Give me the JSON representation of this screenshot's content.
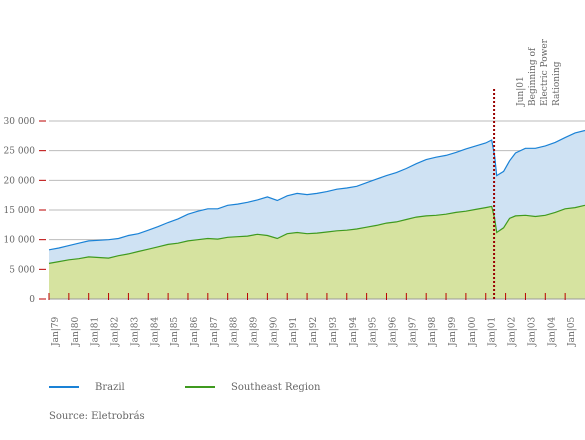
{
  "chart_data": {
    "type": "area",
    "title": "",
    "xlabel": "",
    "ylabel": "",
    "ylim": [
      0,
      30000
    ],
    "yticks": [
      0,
      5000,
      10000,
      15000,
      20000,
      25000,
      30000
    ],
    "ytick_labels": [
      "0",
      "5 000",
      "10 000",
      "15 000",
      "20 000",
      "25 000",
      "30 000"
    ],
    "x_tick_labels": [
      "Jan|79",
      "Jan|80",
      "Jan|81",
      "Jan|82",
      "Jan|83",
      "Jan|84",
      "Jan|85",
      "Jan|86",
      "Jan|87",
      "Jan|88",
      "Jan|89",
      "Jan|90",
      "Jan|91",
      "Jan|92",
      "Jan|93",
      "Jan|94",
      "Jan|95",
      "Jan|96",
      "Jan|97",
      "Jan|98",
      "Jan|99",
      "Jan|00",
      "Jan|01",
      "Jan|02",
      "Jan|03",
      "Jan|04",
      "Jan|05"
    ],
    "grid": true,
    "legend_position": "bottom",
    "series": [
      {
        "name": "Brazil",
        "color": "#1a82d6",
        "fill": "#cfe2f3",
        "points": [
          [
            1979.0,
            8300
          ],
          [
            1979.5,
            8600
          ],
          [
            1980.0,
            9000
          ],
          [
            1980.5,
            9400
          ],
          [
            1981.0,
            9800
          ],
          [
            1981.5,
            9900
          ],
          [
            1982.0,
            10000
          ],
          [
            1982.5,
            10200
          ],
          [
            1983.0,
            10700
          ],
          [
            1983.5,
            11000
          ],
          [
            1984.0,
            11600
          ],
          [
            1984.5,
            12200
          ],
          [
            1985.0,
            12900
          ],
          [
            1985.5,
            13500
          ],
          [
            1986.0,
            14300
          ],
          [
            1986.5,
            14800
          ],
          [
            1987.0,
            15200
          ],
          [
            1987.5,
            15200
          ],
          [
            1988.0,
            15800
          ],
          [
            1988.5,
            16000
          ],
          [
            1989.0,
            16300
          ],
          [
            1989.5,
            16700
          ],
          [
            1990.0,
            17200
          ],
          [
            1990.5,
            16600
          ],
          [
            1991.0,
            17400
          ],
          [
            1991.5,
            17800
          ],
          [
            1992.0,
            17600
          ],
          [
            1992.5,
            17800
          ],
          [
            1993.0,
            18100
          ],
          [
            1993.5,
            18500
          ],
          [
            1994.0,
            18700
          ],
          [
            1994.5,
            19000
          ],
          [
            1995.0,
            19600
          ],
          [
            1995.5,
            20200
          ],
          [
            1996.0,
            20800
          ],
          [
            1996.5,
            21300
          ],
          [
            1997.0,
            22000
          ],
          [
            1997.5,
            22800
          ],
          [
            1998.0,
            23500
          ],
          [
            1998.5,
            23900
          ],
          [
            1999.0,
            24200
          ],
          [
            1999.5,
            24700
          ],
          [
            2000.0,
            25300
          ],
          [
            2000.5,
            25800
          ],
          [
            2001.0,
            26300
          ],
          [
            2001.3,
            26800
          ],
          [
            2001.45,
            24000
          ],
          [
            2001.55,
            20800
          ],
          [
            2001.9,
            21500
          ],
          [
            2002.2,
            23300
          ],
          [
            2002.5,
            24600
          ],
          [
            2003.0,
            25400
          ],
          [
            2003.5,
            25400
          ],
          [
            2004.0,
            25800
          ],
          [
            2004.5,
            26400
          ],
          [
            2005.0,
            27200
          ],
          [
            2005.5,
            28000
          ],
          [
            2006.0,
            28400
          ]
        ]
      },
      {
        "name": "Southeast Region",
        "color": "#3f9a1f",
        "fill": "#d6e3a0",
        "points": [
          [
            1979.0,
            6000
          ],
          [
            1979.5,
            6300
          ],
          [
            1980.0,
            6600
          ],
          [
            1980.5,
            6800
          ],
          [
            1981.0,
            7100
          ],
          [
            1981.5,
            7000
          ],
          [
            1982.0,
            6900
          ],
          [
            1982.5,
            7300
          ],
          [
            1983.0,
            7600
          ],
          [
            1983.5,
            8000
          ],
          [
            1984.0,
            8400
          ],
          [
            1984.5,
            8800
          ],
          [
            1985.0,
            9200
          ],
          [
            1985.5,
            9400
          ],
          [
            1986.0,
            9800
          ],
          [
            1986.5,
            10000
          ],
          [
            1987.0,
            10200
          ],
          [
            1987.5,
            10100
          ],
          [
            1988.0,
            10400
          ],
          [
            1988.5,
            10500
          ],
          [
            1989.0,
            10600
          ],
          [
            1989.5,
            10900
          ],
          [
            1990.0,
            10700
          ],
          [
            1990.5,
            10200
          ],
          [
            1991.0,
            11000
          ],
          [
            1991.5,
            11200
          ],
          [
            1992.0,
            11000
          ],
          [
            1992.5,
            11100
          ],
          [
            1993.0,
            11300
          ],
          [
            1993.5,
            11500
          ],
          [
            1994.0,
            11600
          ],
          [
            1994.5,
            11800
          ],
          [
            1995.0,
            12100
          ],
          [
            1995.5,
            12400
          ],
          [
            1996.0,
            12800
          ],
          [
            1996.5,
            13000
          ],
          [
            1997.0,
            13400
          ],
          [
            1997.5,
            13800
          ],
          [
            1998.0,
            14000
          ],
          [
            1998.5,
            14100
          ],
          [
            1999.0,
            14300
          ],
          [
            1999.5,
            14600
          ],
          [
            2000.0,
            14800
          ],
          [
            2000.5,
            15100
          ],
          [
            2001.0,
            15400
          ],
          [
            2001.3,
            15600
          ],
          [
            2001.45,
            13500
          ],
          [
            2001.55,
            11200
          ],
          [
            2001.9,
            12000
          ],
          [
            2002.2,
            13600
          ],
          [
            2002.5,
            14000
          ],
          [
            2003.0,
            14100
          ],
          [
            2003.5,
            13900
          ],
          [
            2004.0,
            14100
          ],
          [
            2004.5,
            14600
          ],
          [
            2005.0,
            15200
          ],
          [
            2005.5,
            15400
          ],
          [
            2006.0,
            15800
          ]
        ]
      }
    ],
    "annotation": {
      "lines": [
        "Jun|01",
        "Beginning of",
        "Electric Power",
        "Rationing"
      ],
      "x": 2001.42,
      "line_color": "#990000"
    }
  },
  "legend": {
    "brazil_label": "Brazil",
    "southeast_label": "Southeast Region"
  },
  "source": "Source: Eletrobrás"
}
